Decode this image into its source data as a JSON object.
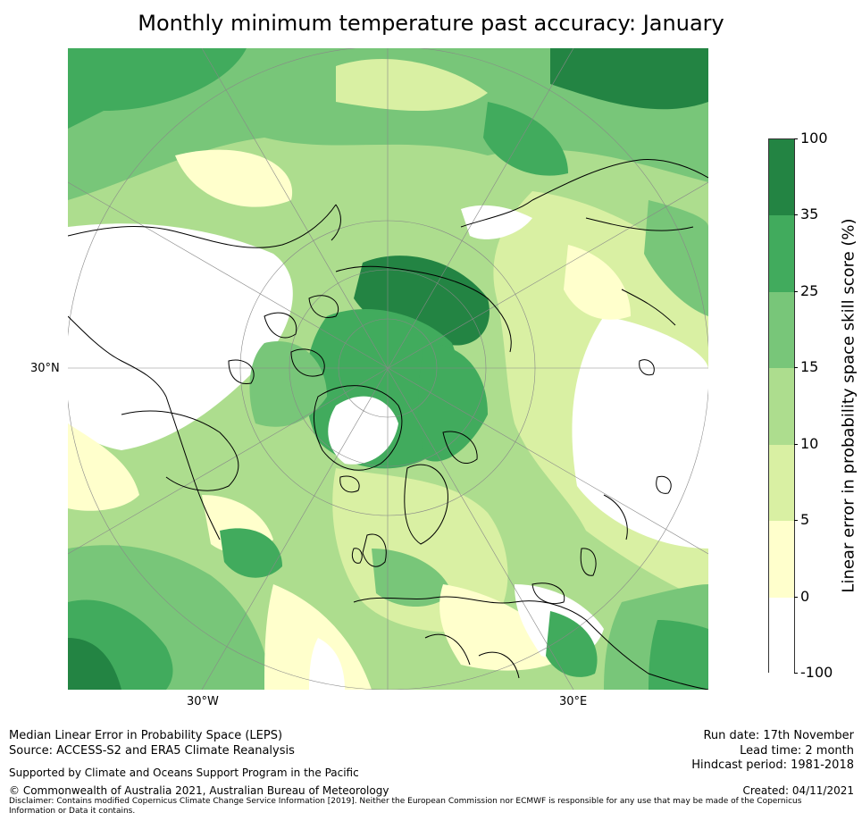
{
  "title": "Monthly minimum temperature past accuracy: January",
  "map": {
    "lat_labels": [
      "30°N"
    ],
    "lon_labels": [
      "30°W",
      "30°E"
    ],
    "palette": {
      "none": "#ffffff",
      "c0_5": "#ffffcc",
      "c5_10": "#d9f0a3",
      "c10_15": "#addd8e",
      "c15_25": "#78c679",
      "c25_35": "#41ab5d",
      "c35_100": "#238443",
      "coast": "#000000",
      "grid": "#888888"
    }
  },
  "colorbar": {
    "label": "Linear error in probability space skill score (%)",
    "ticks": [
      "100",
      "35",
      "25",
      "15",
      "10",
      "5",
      "0",
      "-100"
    ],
    "bins": [
      {
        "range": "35 to 100",
        "color": "#238443"
      },
      {
        "range": "25 to 35",
        "color": "#41ab5d"
      },
      {
        "range": "15 to 25",
        "color": "#78c679"
      },
      {
        "range": "10 to 15",
        "color": "#addd8e"
      },
      {
        "range": "5 to 10",
        "color": "#d9f0a3"
      },
      {
        "range": "0 to 5",
        "color": "#ffffcc"
      },
      {
        "range": "-100 to 0",
        "color": "#ffffff"
      }
    ]
  },
  "footer": {
    "line1": "Median Linear Error in Probability Space (LEPS)",
    "line2": "Source: ACCESS-S2 and ERA5 Climate Reanalysis",
    "support": "Supported by Climate and Oceans Support Program in the Pacific",
    "copyright": "© Commonwealth of Australia 2021, Australian Bureau of Meteorology",
    "disclaimer1": "Disclaimer: Contains modified Copernicus Climate Change Service Information [2019]. Neither the European Commission nor ECMWF is responsible for any use that may be made of the Copernicus",
    "disclaimer2": "Information or Data it contains.",
    "run_date": "Run date: 17th November",
    "lead_time": "Lead time: 2 month",
    "hindcast": "Hindcast period: 1981-2018",
    "created": "Created: 04/11/2021"
  }
}
